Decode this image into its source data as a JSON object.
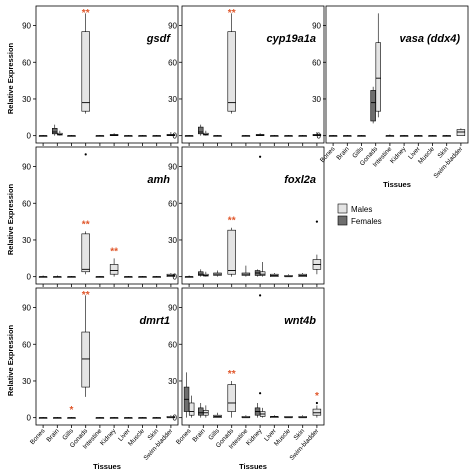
{
  "figure": {
    "ylabel": "Relative Expression",
    "xlabel": "Tissues",
    "tissues": [
      "Bones",
      "Brain",
      "Gills",
      "Gonads",
      "Intestine",
      "Kidney",
      "Liver",
      "Muscle",
      "Skin",
      "Swim-bladder"
    ],
    "legend": {
      "males": "Males",
      "females": "Females"
    },
    "colors": {
      "male_fill": "#e4e4e4",
      "female_fill": "#6e6e6e",
      "star": "#e0562a",
      "line": "#000000"
    }
  },
  "chart_data": [
    {
      "type": "boxplot",
      "title": "gsdf",
      "ylim": [
        -6,
        106
      ],
      "yticks": [
        0,
        30,
        60,
        90
      ],
      "star_marks": [
        {
          "tissue": "Gonads",
          "text": "**"
        }
      ],
      "boxes": [
        {
          "tissue": "Bones",
          "sex": "male",
          "min": 0,
          "q1": 0,
          "median": 0,
          "q3": 0,
          "max": 0.5
        },
        {
          "tissue": "Brain",
          "sex": "female",
          "min": 0,
          "q1": 1.5,
          "median": 3,
          "q3": 6,
          "max": 9
        },
        {
          "tissue": "Brain",
          "sex": "male",
          "min": 0,
          "q1": 0.5,
          "median": 1,
          "q3": 2,
          "max": 4
        },
        {
          "tissue": "Gills",
          "sex": "male",
          "min": 0,
          "q1": 0,
          "median": 0,
          "q3": 0,
          "max": 0.5
        },
        {
          "tissue": "Gonads",
          "sex": "male",
          "min": 18,
          "q1": 20,
          "median": 27,
          "q3": 85,
          "max": 100
        },
        {
          "tissue": "Intestine",
          "sex": "male",
          "min": 0,
          "q1": 0,
          "median": 0,
          "q3": 0,
          "max": 0.5
        },
        {
          "tissue": "Kidney",
          "sex": "male",
          "min": 0,
          "q1": 0,
          "median": 0.5,
          "q3": 1,
          "max": 2
        },
        {
          "tissue": "Liver",
          "sex": "male",
          "min": 0,
          "q1": 0,
          "median": 0,
          "q3": 0,
          "max": 0.5
        },
        {
          "tissue": "Muscle",
          "sex": "male",
          "min": 0,
          "q1": 0,
          "median": 0,
          "q3": 0,
          "max": 0.5
        },
        {
          "tissue": "Skin",
          "sex": "male",
          "min": 0,
          "q1": 0,
          "median": 0,
          "q3": 0,
          "max": 0.5
        },
        {
          "tissue": "Swim-bladder",
          "sex": "male",
          "min": 0,
          "q1": 0,
          "median": 0.5,
          "q3": 1,
          "max": 3
        }
      ]
    },
    {
      "type": "boxplot",
      "title": "cyp19a1a",
      "ylim": [
        -6,
        106
      ],
      "yticks": [
        0,
        30,
        60,
        90
      ],
      "star_marks": [
        {
          "tissue": "Gonads",
          "text": "**"
        }
      ],
      "boxes": [
        {
          "tissue": "Bones",
          "sex": "male",
          "min": 0,
          "q1": 0,
          "median": 0,
          "q3": 0,
          "max": 0.5
        },
        {
          "tissue": "Brain",
          "sex": "female",
          "min": 0,
          "q1": 1.5,
          "median": 3,
          "q3": 7,
          "max": 9
        },
        {
          "tissue": "Brain",
          "sex": "male",
          "min": 0,
          "q1": 0.5,
          "median": 1,
          "q3": 2,
          "max": 4
        },
        {
          "tissue": "Gills",
          "sex": "male",
          "min": 0,
          "q1": 0,
          "median": 0,
          "q3": 0,
          "max": 0.5
        },
        {
          "tissue": "Gonads",
          "sex": "male",
          "min": 18,
          "q1": 20,
          "median": 27,
          "q3": 85,
          "max": 100
        },
        {
          "tissue": "Intestine",
          "sex": "male",
          "min": 0,
          "q1": 0,
          "median": 0,
          "q3": 0,
          "max": 0.5
        },
        {
          "tissue": "Kidney",
          "sex": "male",
          "min": 0,
          "q1": 0,
          "median": 0.5,
          "q3": 1,
          "max": 2
        },
        {
          "tissue": "Liver",
          "sex": "male",
          "min": 0,
          "q1": 0,
          "median": 0,
          "q3": 0,
          "max": 0.5
        },
        {
          "tissue": "Muscle",
          "sex": "male",
          "min": 0,
          "q1": 0,
          "median": 0,
          "q3": 0,
          "max": 0.5
        },
        {
          "tissue": "Skin",
          "sex": "male",
          "min": 0,
          "q1": 0,
          "median": 0,
          "q3": 0,
          "max": 0.5
        },
        {
          "tissue": "Swim-bladder",
          "sex": "male",
          "min": 0,
          "q1": 0,
          "median": 0.5,
          "q3": 1,
          "max": 3
        }
      ]
    },
    {
      "type": "boxplot",
      "title": "vasa (ddx4)",
      "ylim": [
        -6,
        106
      ],
      "yticks": [
        0,
        30,
        60,
        90
      ],
      "star_marks": [],
      "boxes": [
        {
          "tissue": "Bones",
          "sex": "male",
          "min": 0,
          "q1": 0,
          "median": 0,
          "q3": 0,
          "max": 0.5
        },
        {
          "tissue": "Brain",
          "sex": "male",
          "min": 0,
          "q1": 0,
          "median": 0,
          "q3": 0,
          "max": 0.5
        },
        {
          "tissue": "Gills",
          "sex": "male",
          "min": 0,
          "q1": 0,
          "median": 0,
          "q3": 0,
          "max": 0.5
        },
        {
          "tissue": "Gonads",
          "sex": "female",
          "min": 10,
          "q1": 12,
          "median": 27,
          "q3": 37,
          "max": 40
        },
        {
          "tissue": "Gonads",
          "sex": "male",
          "min": 15,
          "q1": 20,
          "median": 47,
          "q3": 76,
          "max": 100
        },
        {
          "tissue": "Intestine",
          "sex": "male",
          "min": 0,
          "q1": 0,
          "median": 0,
          "q3": 0,
          "max": 1
        },
        {
          "tissue": "Kidney",
          "sex": "male",
          "min": 0,
          "q1": 0,
          "median": 0,
          "q3": 0,
          "max": 0.5
        },
        {
          "tissue": "Liver",
          "sex": "male",
          "min": 0,
          "q1": 0,
          "median": 0,
          "q3": 0,
          "max": 0.5
        },
        {
          "tissue": "Muscle",
          "sex": "male",
          "min": 0,
          "q1": 0,
          "median": 0,
          "q3": 0,
          "max": 0.5
        },
        {
          "tissue": "Skin",
          "sex": "male",
          "min": 0,
          "q1": 0,
          "median": 0,
          "q3": 0,
          "max": 0.5
        },
        {
          "tissue": "Swim-bladder",
          "sex": "male",
          "min": 0,
          "q1": 0,
          "median": 3,
          "q3": 5,
          "max": 6
        }
      ]
    },
    {
      "type": "boxplot",
      "title": "amh",
      "ylim": [
        -6,
        106
      ],
      "yticks": [
        0,
        30,
        60,
        90
      ],
      "star_marks": [
        {
          "tissue": "Gonads",
          "text": "**"
        },
        {
          "tissue": "Kidney",
          "text": "**"
        }
      ],
      "boxes": [
        {
          "tissue": "Bones",
          "sex": "male",
          "min": 0,
          "q1": 0,
          "median": 0,
          "q3": 0,
          "max": 1
        },
        {
          "tissue": "Brain",
          "sex": "male",
          "min": 0,
          "q1": 0,
          "median": 0,
          "q3": 0,
          "max": 1
        },
        {
          "tissue": "Gills",
          "sex": "male",
          "min": 0,
          "q1": 0,
          "median": 0,
          "q3": 0,
          "max": 0.5
        },
        {
          "tissue": "Gonads",
          "sex": "male",
          "min": 2,
          "q1": 4,
          "median": 6,
          "q3": 35,
          "max": 37
        },
        {
          "tissue": "Intestine",
          "sex": "male",
          "min": 0,
          "q1": 0,
          "median": 0,
          "q3": 0,
          "max": 0.5
        },
        {
          "tissue": "Kidney",
          "sex": "male",
          "min": 0,
          "q1": 2,
          "median": 5,
          "q3": 10,
          "max": 15
        },
        {
          "tissue": "Liver",
          "sex": "male",
          "min": 0,
          "q1": 0,
          "median": 0,
          "q3": 0,
          "max": 0.5
        },
        {
          "tissue": "Muscle",
          "sex": "male",
          "min": 0,
          "q1": 0,
          "median": 0,
          "q3": 0,
          "max": 0.5
        },
        {
          "tissue": "Skin",
          "sex": "male",
          "min": 0,
          "q1": 0,
          "median": 0,
          "q3": 0,
          "max": 0.5
        },
        {
          "tissue": "Swim-bladder",
          "sex": "male",
          "min": 0,
          "q1": 0,
          "median": 1,
          "q3": 2,
          "max": 3
        }
      ],
      "outliers": [
        {
          "tissue": "Gonads",
          "value": 100
        }
      ]
    },
    {
      "type": "boxplot",
      "title": "foxl2a",
      "ylim": [
        -6,
        106
      ],
      "yticks": [
        0,
        30,
        60,
        90
      ],
      "star_marks": [
        {
          "tissue": "Gonads",
          "text": "**"
        }
      ],
      "boxes": [
        {
          "tissue": "Bones",
          "sex": "male",
          "min": 0,
          "q1": 0,
          "median": 0,
          "q3": 0,
          "max": 1
        },
        {
          "tissue": "Brain",
          "sex": "female",
          "min": 0,
          "q1": 1,
          "median": 2,
          "q3": 4,
          "max": 6
        },
        {
          "tissue": "Brain",
          "sex": "male",
          "min": 0,
          "q1": 0.5,
          "median": 1,
          "q3": 2,
          "max": 4
        },
        {
          "tissue": "Gills",
          "sex": "male",
          "min": 0,
          "q1": 1,
          "median": 2,
          "q3": 3,
          "max": 5
        },
        {
          "tissue": "Gonads",
          "sex": "male",
          "min": 0,
          "q1": 2,
          "median": 5,
          "q3": 38,
          "max": 40
        },
        {
          "tissue": "Intestine",
          "sex": "male",
          "min": 0,
          "q1": 1,
          "median": 2,
          "q3": 3,
          "max": 9
        },
        {
          "tissue": "Kidney",
          "sex": "female",
          "min": 0,
          "q1": 1,
          "median": 3,
          "q3": 5,
          "max": 6
        },
        {
          "tissue": "Kidney",
          "sex": "male",
          "min": 0,
          "q1": 1,
          "median": 2,
          "q3": 4,
          "max": 12
        },
        {
          "tissue": "Liver",
          "sex": "male",
          "min": 0,
          "q1": 0,
          "median": 1,
          "q3": 2,
          "max": 3
        },
        {
          "tissue": "Muscle",
          "sex": "male",
          "min": 0,
          "q1": 0,
          "median": 0,
          "q3": 1,
          "max": 2
        },
        {
          "tissue": "Skin",
          "sex": "male",
          "min": 0,
          "q1": 0,
          "median": 1,
          "q3": 2,
          "max": 3
        },
        {
          "tissue": "Swim-bladder",
          "sex": "male",
          "min": 2,
          "q1": 6,
          "median": 10,
          "q3": 14,
          "max": 18
        }
      ],
      "outliers": [
        {
          "tissue": "Kidney",
          "value": 98
        },
        {
          "tissue": "Swim-bladder",
          "value": 45
        }
      ]
    },
    {
      "type": "boxplot",
      "title": "dmrt1",
      "ylim": [
        -6,
        106
      ],
      "yticks": [
        0,
        30,
        60,
        90
      ],
      "star_marks": [
        {
          "tissue": "Gonads",
          "text": "**"
        },
        {
          "tissue": "Gills",
          "text": "*"
        }
      ],
      "boxes": [
        {
          "tissue": "Bones",
          "sex": "male",
          "min": 0,
          "q1": 0,
          "median": 0,
          "q3": 0,
          "max": 0.5
        },
        {
          "tissue": "Brain",
          "sex": "male",
          "min": 0,
          "q1": 0,
          "median": 0,
          "q3": 0,
          "max": 0.5
        },
        {
          "tissue": "Gills",
          "sex": "male",
          "min": 0,
          "q1": 0,
          "median": 0,
          "q3": 0,
          "max": 0.5
        },
        {
          "tissue": "Gonads",
          "sex": "male",
          "min": 17,
          "q1": 25,
          "median": 48,
          "q3": 70,
          "max": 100
        },
        {
          "tissue": "Intestine",
          "sex": "male",
          "min": 0,
          "q1": 0,
          "median": 0,
          "q3": 0,
          "max": 0.5
        },
        {
          "tissue": "Kidney",
          "sex": "male",
          "min": 0,
          "q1": 0,
          "median": 0,
          "q3": 0,
          "max": 0.5
        },
        {
          "tissue": "Liver",
          "sex": "male",
          "min": 0,
          "q1": 0,
          "median": 0,
          "q3": 0,
          "max": 0.5
        },
        {
          "tissue": "Muscle",
          "sex": "male",
          "min": 0,
          "q1": 0,
          "median": 0,
          "q3": 0,
          "max": 0.5
        },
        {
          "tissue": "Skin",
          "sex": "male",
          "min": 0,
          "q1": 0,
          "median": 0,
          "q3": 0,
          "max": 0.5
        },
        {
          "tissue": "Swim-bladder",
          "sex": "male",
          "min": 0,
          "q1": 0,
          "median": 0,
          "q3": 1,
          "max": 2
        }
      ]
    },
    {
      "type": "boxplot",
      "title": "wnt4b",
      "ylim": [
        -6,
        106
      ],
      "yticks": [
        0,
        30,
        60,
        90
      ],
      "star_marks": [
        {
          "tissue": "Gonads",
          "text": "**"
        },
        {
          "tissue": "Swim-bladder",
          "text": "*"
        }
      ],
      "boxes": [
        {
          "tissue": "Bones",
          "sex": "female",
          "min": 0,
          "q1": 5,
          "median": 15,
          "q3": 25,
          "max": 37
        },
        {
          "tissue": "Bones",
          "sex": "male",
          "min": 0,
          "q1": 2,
          "median": 5,
          "q3": 12,
          "max": 18
        },
        {
          "tissue": "Brain",
          "sex": "female",
          "min": 0,
          "q1": 2,
          "median": 4,
          "q3": 8,
          "max": 12
        },
        {
          "tissue": "Brain",
          "sex": "male",
          "min": 0,
          "q1": 2,
          "median": 4,
          "q3": 6,
          "max": 10
        },
        {
          "tissue": "Gills",
          "sex": "male",
          "min": 0,
          "q1": 0,
          "median": 1,
          "q3": 2,
          "max": 4
        },
        {
          "tissue": "Gonads",
          "sex": "male",
          "min": 0,
          "q1": 5,
          "median": 12,
          "q3": 27,
          "max": 30
        },
        {
          "tissue": "Intestine",
          "sex": "male",
          "min": 0,
          "q1": 0,
          "median": 0,
          "q3": 1,
          "max": 2
        },
        {
          "tissue": "Kidney",
          "sex": "female",
          "min": 0,
          "q1": 2,
          "median": 5,
          "q3": 8,
          "max": 12
        },
        {
          "tissue": "Kidney",
          "sex": "male",
          "min": 0,
          "q1": 1,
          "median": 3,
          "q3": 5,
          "max": 8
        },
        {
          "tissue": "Liver",
          "sex": "male",
          "min": 0,
          "q1": 0,
          "median": 1,
          "q3": 1,
          "max": 2
        },
        {
          "tissue": "Muscle",
          "sex": "male",
          "min": 0,
          "q1": 0,
          "median": 0,
          "q3": 1,
          "max": 1
        },
        {
          "tissue": "Skin",
          "sex": "male",
          "min": 0,
          "q1": 0,
          "median": 0,
          "q3": 1,
          "max": 2
        },
        {
          "tissue": "Swim-bladder",
          "sex": "male",
          "min": 0,
          "q1": 2,
          "median": 4,
          "q3": 7,
          "max": 10
        }
      ],
      "outliers": [
        {
          "tissue": "Kidney",
          "value": 100
        },
        {
          "tissue": "Kidney",
          "value": 20
        },
        {
          "tissue": "Swim-bladder",
          "value": 12
        }
      ]
    }
  ]
}
